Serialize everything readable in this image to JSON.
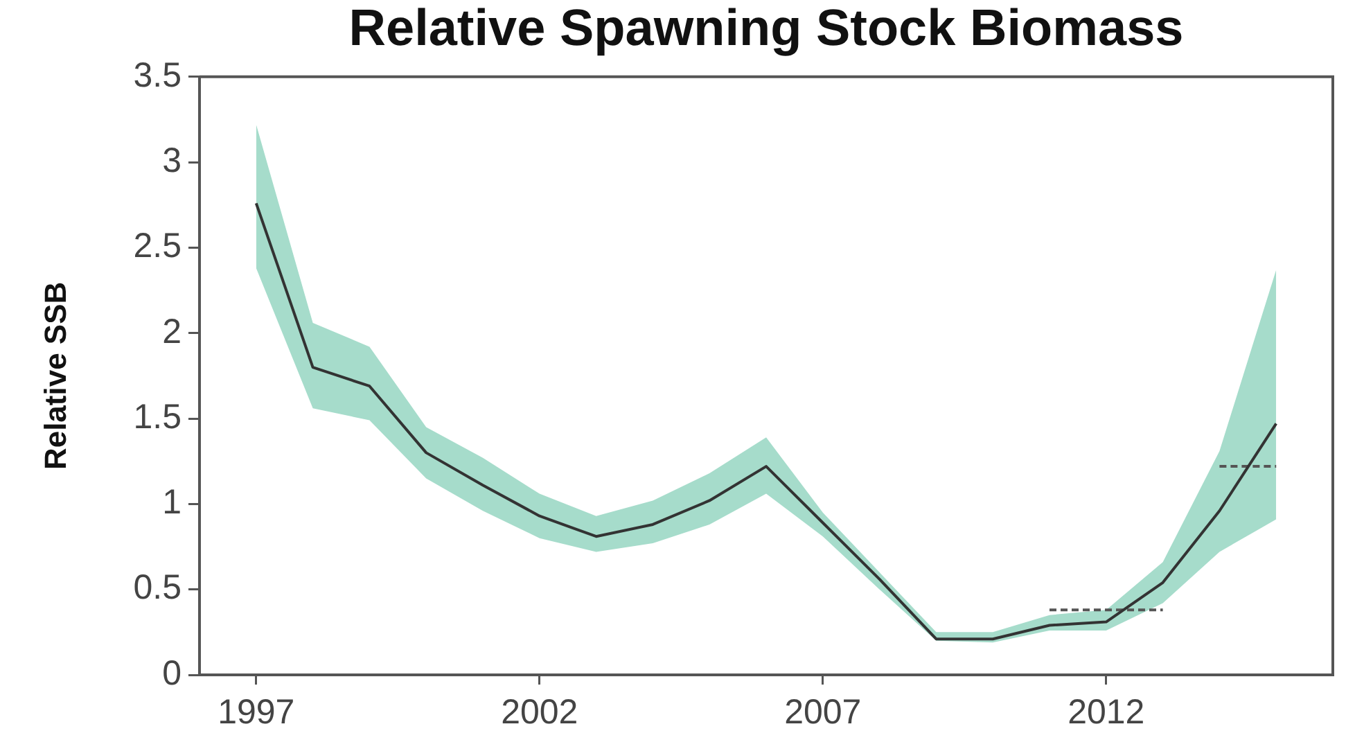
{
  "chart_data": {
    "type": "line",
    "title": "Relative Spawning Stock Biomass",
    "ylabel": "Relative SSB",
    "x": [
      1997,
      1998,
      1999,
      2000,
      2001,
      2002,
      2003,
      2004,
      2005,
      2006,
      2007,
      2008,
      2009,
      2010,
      2011,
      2012,
      2013,
      2014,
      2015
    ],
    "xlim": [
      1996,
      2016
    ],
    "xticks": [
      1997,
      2002,
      2007,
      2012
    ],
    "ylim": [
      0,
      3.5
    ],
    "yticks": [
      0,
      0.5,
      1,
      1.5,
      2,
      2.5,
      3,
      3.5
    ],
    "grid": false,
    "legend": false,
    "marker": "none",
    "line_style": "solid",
    "series": [
      {
        "color": "#333333",
        "values": [
          2.76,
          1.8,
          1.69,
          1.3,
          1.11,
          0.93,
          0.81,
          0.88,
          1.02,
          1.22,
          0.89,
          0.56,
          0.21,
          0.21,
          0.29,
          0.31,
          0.54,
          0.96,
          1.47
        ],
        "lower": [
          2.38,
          1.56,
          1.49,
          1.15,
          0.96,
          0.8,
          0.72,
          0.77,
          0.88,
          1.06,
          0.81,
          0.5,
          0.2,
          0.19,
          0.26,
          0.26,
          0.42,
          0.72,
          0.91
        ],
        "upper": [
          3.22,
          2.06,
          1.92,
          1.45,
          1.27,
          1.06,
          0.93,
          1.02,
          1.18,
          1.39,
          0.95,
          0.6,
          0.25,
          0.25,
          0.35,
          0.38,
          0.66,
          1.31,
          2.37
        ]
      },
      {
        "type": "line",
        "x": [
          2011,
          2013
        ],
        "values": [
          0.38,
          0.38
        ],
        "color": "#555555",
        "line_style": "dashed"
      },
      {
        "type": "line",
        "x": [
          2014,
          2015
        ],
        "values": [
          1.22,
          1.22
        ],
        "color": "#555555",
        "line_style": "dashed"
      }
    ]
  }
}
